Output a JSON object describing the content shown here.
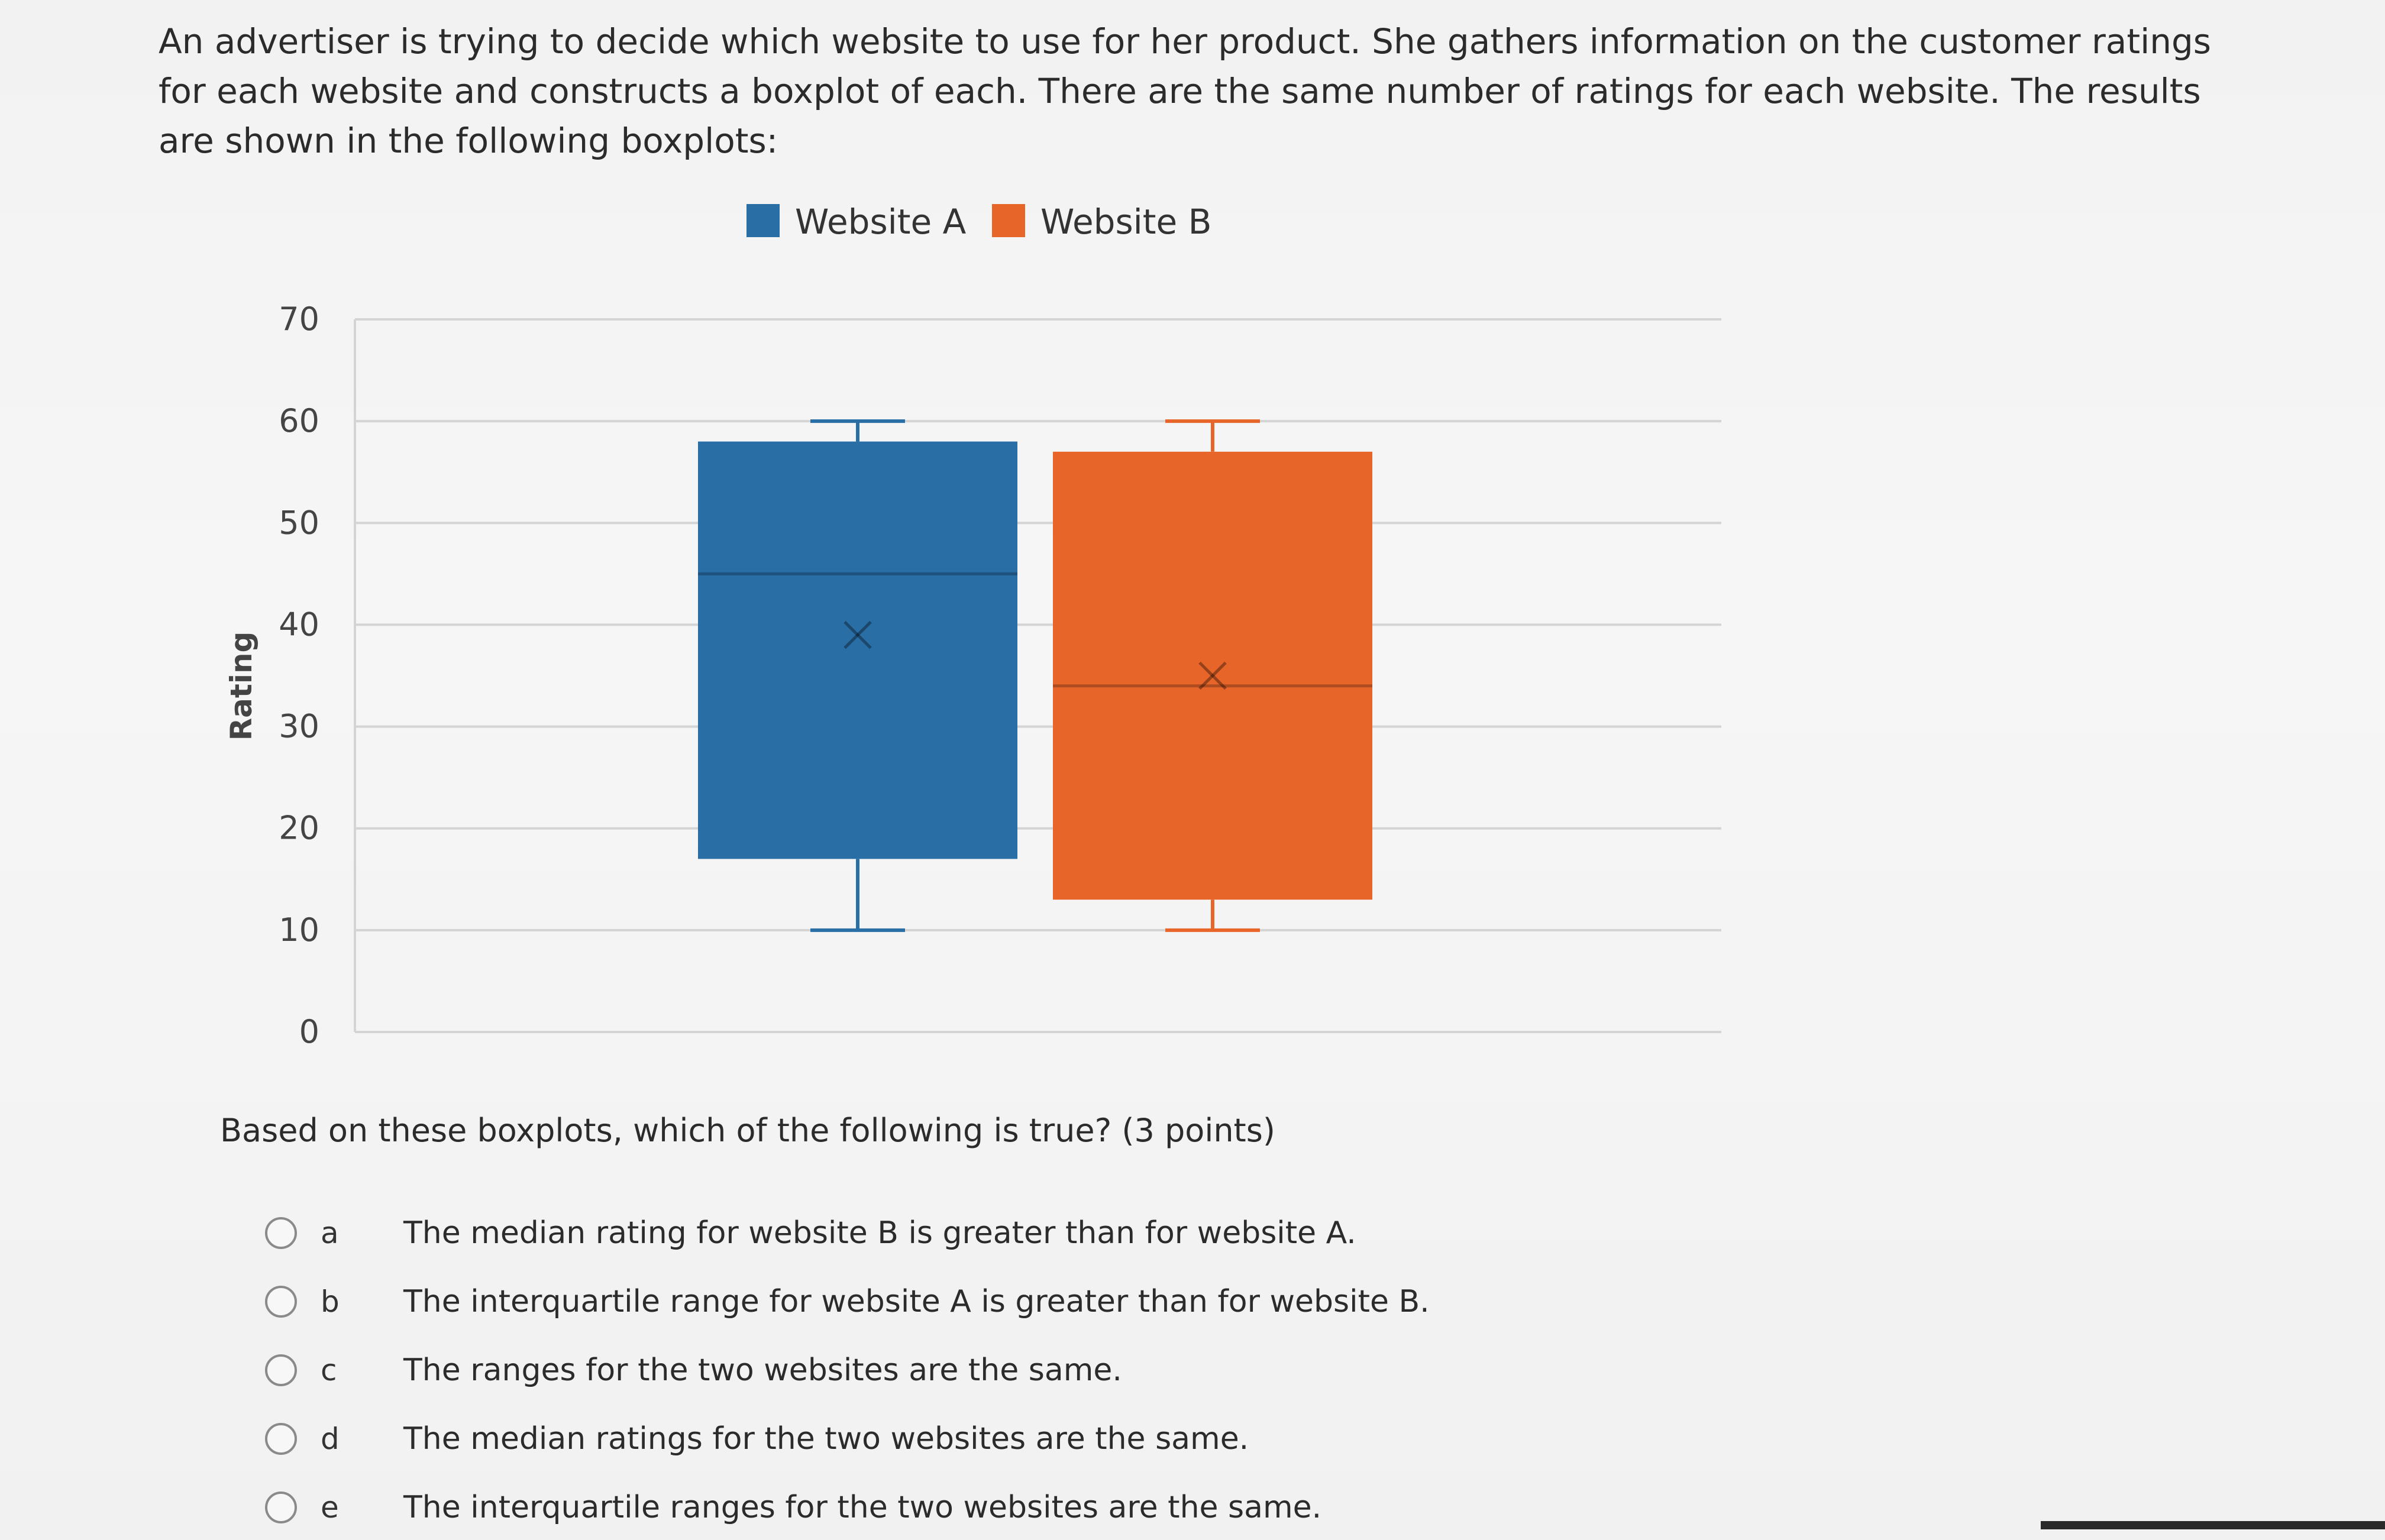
{
  "question": {
    "text": "An advertiser is trying to decide which website to use for her product. She gathers information on the customer ratings for each website and constructs a boxplot of each. There are the same number of ratings for each website. The results are shown in the following boxplots:"
  },
  "prompt": "Based on these boxplots, which of the following is true? (3 points)",
  "options": [
    {
      "letter": "a",
      "text": "The median rating for website B is greater than for website A."
    },
    {
      "letter": "b",
      "text": "The interquartile range for website A is greater than for website B."
    },
    {
      "letter": "c",
      "text": "The ranges for the two websites are the same."
    },
    {
      "letter": "d",
      "text": "The median ratings for the two websites are the same."
    },
    {
      "letter": "e",
      "text": "The interquartile ranges for the two websites are the same."
    }
  ],
  "chart_data": {
    "type": "boxplot",
    "ylabel": "Rating",
    "ylim": [
      0,
      70
    ],
    "yticks": [
      0,
      10,
      20,
      30,
      40,
      50,
      60,
      70
    ],
    "grid": true,
    "legend_position": "top-center",
    "series": [
      {
        "name": "Website A",
        "color": "#2a6ea6",
        "min": 10,
        "q1": 17,
        "median": 45,
        "mean": 39,
        "q3": 58,
        "max": 60
      },
      {
        "name": "Website B",
        "color": "#e8652a",
        "min": 10,
        "q1": 13,
        "median": 34,
        "mean": 35,
        "q3": 57,
        "max": 60
      }
    ]
  },
  "colors": {
    "gridline": "#d4d4d4",
    "text": "#2b2b2b"
  }
}
